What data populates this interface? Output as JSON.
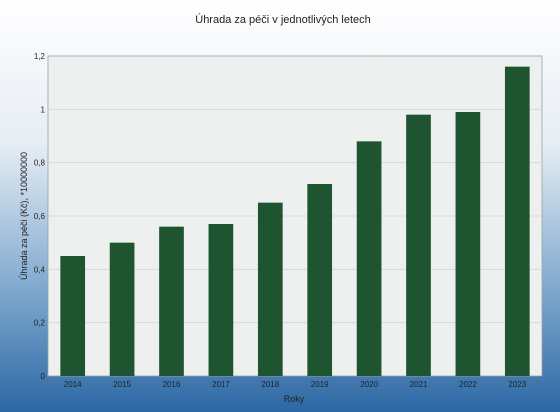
{
  "chart_data": {
    "type": "bar",
    "title": "Úhrada za péči v jednotlivých letech",
    "xlabel": "Roky",
    "ylabel": "Úhrada za péči (Kč), *10000000",
    "categories": [
      "2014",
      "2015",
      "2016",
      "2017",
      "2018",
      "2019",
      "2020",
      "2021",
      "2022",
      "2023"
    ],
    "values": [
      0.45,
      0.5,
      0.56,
      0.57,
      0.65,
      0.72,
      0.88,
      0.98,
      0.99,
      1.16
    ],
    "ylim": [
      0,
      1.2
    ],
    "yticks": [
      0,
      0.2,
      0.4,
      0.6,
      0.8,
      1,
      1.2
    ],
    "ytick_labels": [
      "0",
      "0,2",
      "0,4",
      "0,6",
      "0,8",
      "1",
      "1,2"
    ],
    "grid": true,
    "colors": {
      "bar": "#1f5430",
      "plot_bg": "#eef0ef",
      "frame_bg": "#2f6da8",
      "grid": "#d2d5d4"
    }
  }
}
